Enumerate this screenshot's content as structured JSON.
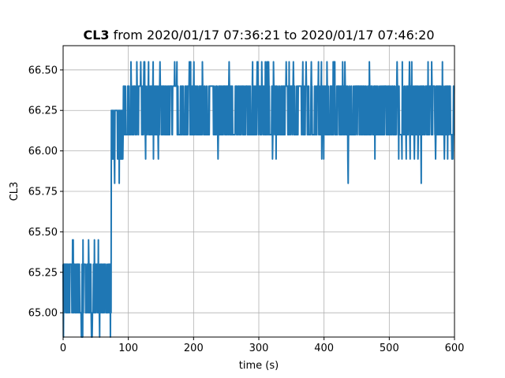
{
  "chart_data": {
    "type": "line",
    "title_prefix": "CL3",
    "title_rest": " from 2020/01/17 07:36:21 to 2020/01/17 07:46:20",
    "xlabel": "time (s)",
    "ylabel": "CL3",
    "xlim": [
      0,
      600
    ],
    "ylim": [
      64.85,
      66.65
    ],
    "xticks": [
      0,
      100,
      200,
      300,
      400,
      500,
      600
    ],
    "yticks": [
      65.0,
      65.25,
      65.5,
      65.75,
      66.0,
      66.25,
      66.5
    ],
    "xtick_labels": [
      "0",
      "100",
      "200",
      "300",
      "400",
      "500",
      "600"
    ],
    "ytick_labels": [
      "65.00",
      "65.25",
      "65.50",
      "65.75",
      "66.00",
      "66.25",
      "66.50"
    ],
    "grid": true,
    "line_color": "#1f77b4",
    "series": [
      {
        "phases": [
          {
            "x_range": [
              0,
              74
            ],
            "band": [
              65.0,
              65.3
            ],
            "spike_high": 65.45,
            "spike_low": 64.85,
            "spike_low_at": [
              28,
              30
            ]
          },
          {
            "x_range": [
              74,
              92
            ],
            "band": [
              65.95,
              66.25
            ],
            "spike_low": 65.8,
            "spike_low_at": [
              86
            ]
          },
          {
            "x_range": [
              92,
              600
            ],
            "band": [
              66.1,
              66.4
            ],
            "spike_high": 66.55,
            "spike_low": 65.95,
            "extra_low": 65.8,
            "extra_low_at": [
              437,
              549
            ]
          }
        ]
      }
    ]
  }
}
